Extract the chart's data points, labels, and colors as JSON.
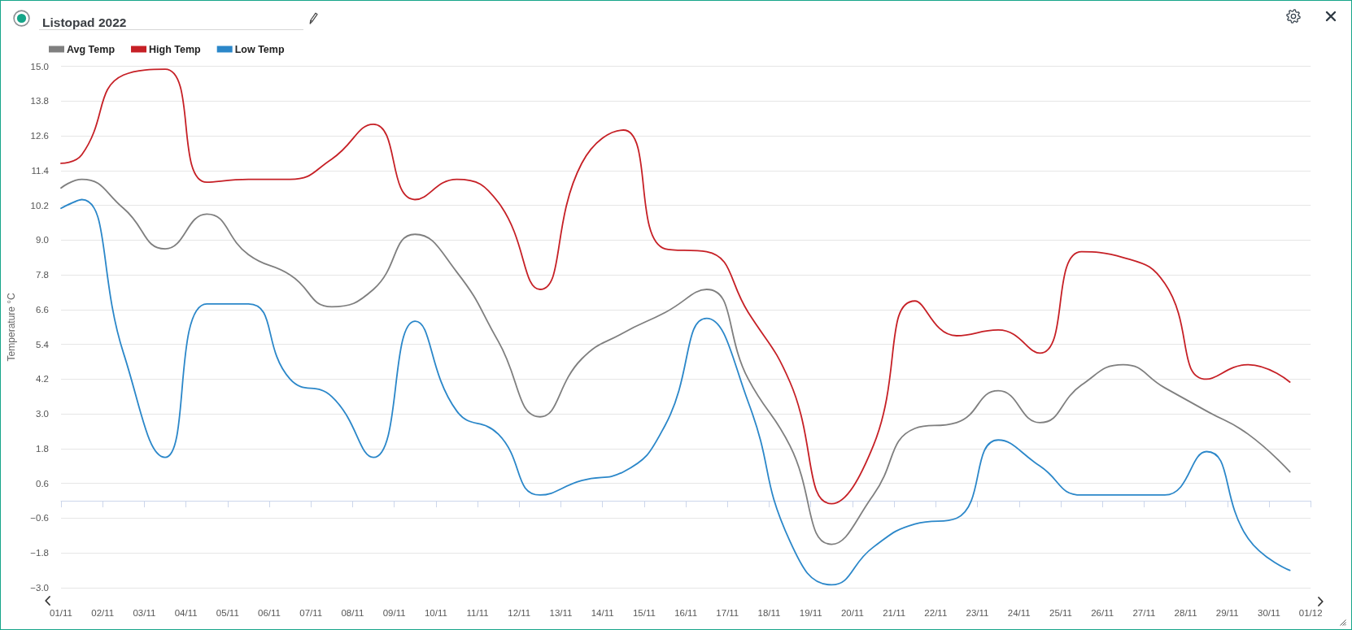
{
  "chart_data": {
    "type": "line",
    "title": "Listopad 2022",
    "ylabel": "Temperature °C",
    "x": [
      "2022-11-01T00:00",
      "2022-11-01T12:00",
      "2022-11-02T12:00",
      "2022-11-03T12:00",
      "2022-11-04T12:00",
      "2022-11-05T12:00",
      "2022-11-06T12:00",
      "2022-11-07T12:00",
      "2022-11-08T12:00",
      "2022-11-09T12:00",
      "2022-11-10T12:00",
      "2022-11-11T12:00",
      "2022-11-12T12:00",
      "2022-11-13T12:00",
      "2022-11-14T12:00",
      "2022-11-15T12:00",
      "2022-11-16T12:00",
      "2022-11-17T12:00",
      "2022-11-18T12:00",
      "2022-11-19T12:00",
      "2022-11-20T12:00",
      "2022-11-21T12:00",
      "2022-11-22T12:00",
      "2022-11-23T12:00",
      "2022-11-24T12:00",
      "2022-11-25T12:00",
      "2022-11-26T12:00",
      "2022-11-27T12:00",
      "2022-11-28T12:00",
      "2022-11-29T12:00",
      "2022-11-30T12:00"
    ],
    "xlim": [
      "2022-11-01",
      "2022-12-01"
    ],
    "xticks": [
      {
        "value": "2022-11-01",
        "label": "01/11"
      },
      {
        "value": "2022-11-02",
        "label": "02/11"
      },
      {
        "value": "2022-11-03",
        "label": "03/11"
      },
      {
        "value": "2022-11-04",
        "label": "04/11"
      },
      {
        "value": "2022-11-05",
        "label": "05/11"
      },
      {
        "value": "2022-11-06",
        "label": "06/11"
      },
      {
        "value": "2022-11-07",
        "label": "07/11"
      },
      {
        "value": "2022-11-08",
        "label": "08/11"
      },
      {
        "value": "2022-11-09",
        "label": "09/11"
      },
      {
        "value": "2022-11-10",
        "label": "10/11"
      },
      {
        "value": "2022-11-11",
        "label": "11/11"
      },
      {
        "value": "2022-11-12",
        "label": "12/11"
      },
      {
        "value": "2022-11-13",
        "label": "13/11"
      },
      {
        "value": "2022-11-14",
        "label": "14/11"
      },
      {
        "value": "2022-11-15",
        "label": "15/11"
      },
      {
        "value": "2022-11-16",
        "label": "16/11"
      },
      {
        "value": "2022-11-17",
        "label": "17/11"
      },
      {
        "value": "2022-11-18",
        "label": "18/11"
      },
      {
        "value": "2022-11-19",
        "label": "19/11"
      },
      {
        "value": "2022-11-20",
        "label": "20/11"
      },
      {
        "value": "2022-11-21",
        "label": "21/11"
      },
      {
        "value": "2022-11-22",
        "label": "22/11"
      },
      {
        "value": "2022-11-23",
        "label": "23/11"
      },
      {
        "value": "2022-11-24",
        "label": "24/11"
      },
      {
        "value": "2022-11-25",
        "label": "25/11"
      },
      {
        "value": "2022-11-26",
        "label": "26/11"
      },
      {
        "value": "2022-11-27",
        "label": "27/11"
      },
      {
        "value": "2022-11-28",
        "label": "28/11"
      },
      {
        "value": "2022-11-29",
        "label": "29/11"
      },
      {
        "value": "2022-11-30",
        "label": "30/11"
      },
      {
        "value": "2022-12-01",
        "label": "01/12"
      }
    ],
    "ylim": [
      -3,
      15
    ],
    "yticks": [
      {
        "value": 15,
        "label": "15.0"
      },
      {
        "value": 13.8,
        "label": "13.8"
      },
      {
        "value": 12.6,
        "label": "12.6"
      },
      {
        "value": 11.4,
        "label": "11.4"
      },
      {
        "value": 10.2,
        "label": "10.2"
      },
      {
        "value": 9,
        "label": "9.0"
      },
      {
        "value": 7.8,
        "label": "7.8"
      },
      {
        "value": 6.6,
        "label": "6.6"
      },
      {
        "value": 5.4,
        "label": "5.4"
      },
      {
        "value": 4.2,
        "label": "4.2"
      },
      {
        "value": 3,
        "label": "3.0"
      },
      {
        "value": 1.8,
        "label": "1.8"
      },
      {
        "value": 0.6,
        "label": "0.6"
      },
      {
        "value": -0.6,
        "label": "−0.6"
      },
      {
        "value": -1.8,
        "label": "−1.8"
      },
      {
        "value": -3,
        "label": "−3.0"
      }
    ],
    "series": [
      {
        "name": "Avg Temp",
        "color": "#7f7f7f",
        "values": [
          10.8,
          11.1,
          10.1,
          8.7,
          9.9,
          8.5,
          7.8,
          6.7,
          7.3,
          9.2,
          7.9,
          5.5,
          2.9,
          4.9,
          5.8,
          6.5,
          7.3,
          4.2,
          1.9,
          -1.5,
          0.2,
          2.5,
          2.7,
          3.8,
          2.7,
          4.0,
          4.7,
          3.9,
          3.1,
          2.3,
          1.0
        ]
      },
      {
        "name": "High Temp",
        "color": "#c62026",
        "values": [
          11.65,
          11.95,
          14.7,
          14.9,
          11.0,
          11.1,
          11.1,
          11.8,
          13.0,
          10.4,
          11.1,
          10.3,
          7.3,
          11.65,
          12.8,
          8.7,
          8.6,
          6.5,
          4.1,
          -0.1,
          1.9,
          6.9,
          5.7,
          5.9,
          5.1,
          8.6,
          8.4,
          7.5,
          4.2,
          4.7,
          4.1
        ]
      },
      {
        "name": "Low Temp",
        "color": "#2b87c9",
        "values": [
          10.1,
          10.4,
          5.1,
          1.5,
          6.8,
          6.8,
          4.2,
          3.6,
          1.5,
          6.2,
          3.1,
          2.3,
          0.2,
          0.7,
          1.0,
          2.6,
          6.3,
          3.4,
          -1.4,
          -2.9,
          -1.6,
          -0.8,
          -0.6,
          2.1,
          1.2,
          0.2,
          0.2,
          0.2,
          1.7,
          -1.3,
          -2.4
        ]
      }
    ],
    "legend": "top left",
    "grid": "y",
    "marker": "none",
    "line_style": "solid"
  }
}
